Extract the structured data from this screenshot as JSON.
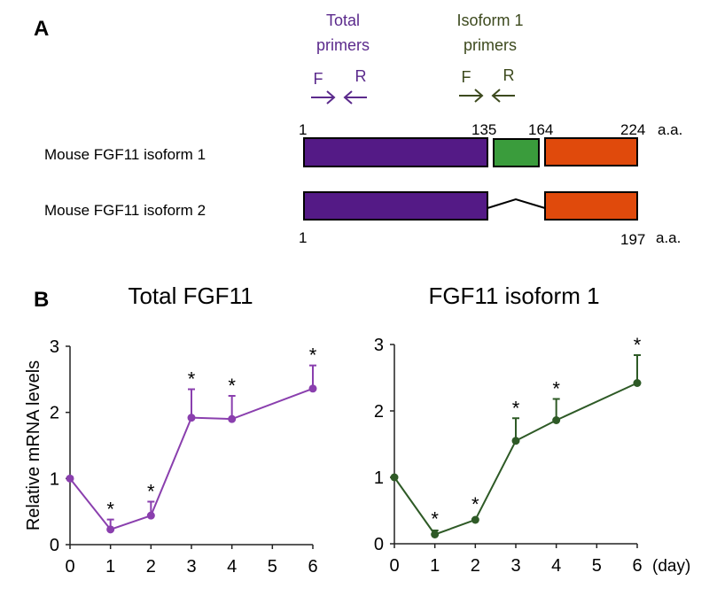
{
  "panel_a": {
    "label": "A",
    "total_primers": {
      "line1": "Total",
      "line2": "primers",
      "f": "F",
      "r": "R",
      "color": "#5b2a8c"
    },
    "isoform_primers": {
      "line1": "Isoform 1",
      "line2": "primers",
      "f": "F",
      "r": "R",
      "color": "#3d4a1e"
    },
    "isoform1": {
      "name": "Mouse FGF11 isoform 1",
      "start": "1",
      "pos1": "135",
      "pos2": "164",
      "end": "224",
      "unit": "a.a."
    },
    "isoform2": {
      "name": "Mouse FGF11 isoform 2",
      "start": "1",
      "end": "197",
      "unit": "a.a."
    },
    "colors": {
      "domain1": "#541a86",
      "domain2": "#3a9c3c",
      "domain3": "#e04a0c"
    }
  },
  "panel_b": {
    "label": "B",
    "x_unit": "(day)"
  },
  "chart_data": [
    {
      "type": "line",
      "title": "Total FGF11",
      "ylabel": "Relative mRNA levels",
      "xlabel": "",
      "x_ticks": [
        "0",
        "1",
        "2",
        "3",
        "4",
        "5",
        "6"
      ],
      "y_ticks": [
        "0",
        "1",
        "2",
        "3"
      ],
      "xlim": [
        0,
        6
      ],
      "ylim": [
        0,
        3
      ],
      "color": "#8a3fae",
      "x": [
        0,
        1,
        2,
        3,
        4,
        6
      ],
      "y": [
        1.0,
        0.23,
        0.44,
        1.92,
        1.9,
        2.36
      ],
      "error_upper": [
        null,
        0.38,
        0.65,
        2.35,
        2.25,
        2.71
      ],
      "significance": [
        "",
        "*",
        "*",
        "*",
        "*",
        "*"
      ]
    },
    {
      "type": "line",
      "title": "FGF11 isoform 1",
      "ylabel": "",
      "xlabel": "(day)",
      "x_ticks": [
        "0",
        "1",
        "2",
        "3",
        "4",
        "5",
        "6"
      ],
      "y_ticks": [
        "0",
        "1",
        "2",
        "3"
      ],
      "xlim": [
        0,
        6
      ],
      "ylim": [
        0,
        3
      ],
      "color": "#2e5a26",
      "x": [
        0,
        1,
        2,
        3,
        4,
        6
      ],
      "y": [
        1.0,
        0.14,
        0.36,
        1.55,
        1.86,
        2.42
      ],
      "error_upper": [
        null,
        0.2,
        null,
        1.89,
        2.18,
        2.84
      ],
      "significance": [
        "",
        "*",
        "*",
        "*",
        "*",
        "*"
      ]
    }
  ]
}
